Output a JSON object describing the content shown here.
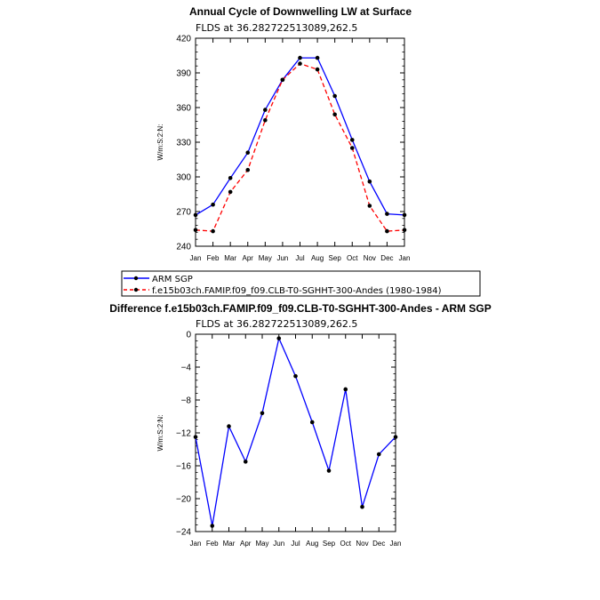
{
  "chart_data": [
    {
      "type": "line",
      "title": "Annual Cycle of Downwelling LW at Surface",
      "subtitle": "FLDS at 36.282722513089,262.5",
      "ylabel": "W/m:S:2:N:",
      "xlabel": "",
      "categories": [
        "Jan",
        "Feb",
        "Mar",
        "Apr",
        "May",
        "Jun",
        "Jul",
        "Aug",
        "Sep",
        "Oct",
        "Nov",
        "Dec",
        "Jan"
      ],
      "ylim": [
        240,
        420
      ],
      "yticks": [
        240,
        270,
        300,
        330,
        360,
        390,
        420
      ],
      "series": [
        {
          "name": "ARM SGP",
          "color": "#0000ff",
          "dash": "solid",
          "values": [
            267,
            276,
            299,
            321,
            358,
            384,
            403,
            403,
            370,
            332,
            296,
            268,
            267
          ]
        },
        {
          "name": "f.e15b03ch.FAMIP.f09_f09.CLB-T0-SGHHT-300-Andes (1980-1984)",
          "color": "#ff0000",
          "dash": "dashed",
          "values": [
            254,
            253,
            287,
            306,
            349,
            384,
            398,
            393,
            354,
            325,
            275,
            253,
            254
          ]
        }
      ],
      "legend": "below"
    },
    {
      "type": "line",
      "title": "Difference f.e15b03ch.FAMIP.f09_f09.CLB-T0-SGHHT-300-Andes - ARM SGP",
      "subtitle": "FLDS at 36.282722513089,262.5",
      "ylabel": "W/m:S:2:N:",
      "xlabel": "",
      "categories": [
        "Jan",
        "Feb",
        "Mar",
        "Apr",
        "May",
        "Jun",
        "Jul",
        "Aug",
        "Sep",
        "Oct",
        "Nov",
        "Dec",
        "Jan"
      ],
      "ylim": [
        -24,
        0
      ],
      "yticks": [
        -24,
        -20,
        -16,
        -12,
        -8,
        -4,
        0
      ],
      "series": [
        {
          "color": "#0000ff",
          "dash": "solid",
          "values": [
            -12.5,
            -23.3,
            -11.2,
            -15.5,
            -9.6,
            -0.5,
            -5.1,
            -10.7,
            -16.6,
            -6.7,
            -21.0,
            -14.6,
            -12.5
          ]
        }
      ]
    }
  ]
}
